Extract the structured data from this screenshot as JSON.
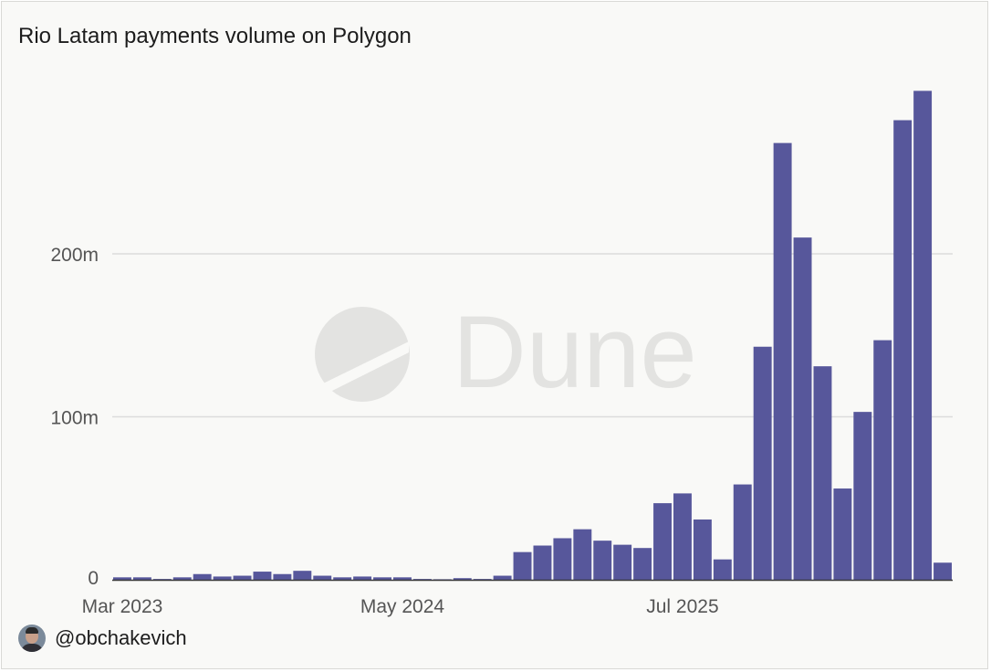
{
  "author": {
    "handle": "@obchakevich"
  },
  "watermark": {
    "text": "Dune"
  },
  "colors": {
    "bar": "#57579b",
    "grid": "#dcdcdc",
    "axis": "#3a3a3a",
    "tick_text": "#555555",
    "watermark": "#e3e3e1"
  },
  "chart_data": {
    "type": "bar",
    "title": "Rio Latam payments volume on Polygon",
    "xlabel": "",
    "ylabel": "",
    "x_tick_labels": [
      {
        "label": "Mar 2023",
        "category_index": 0
      },
      {
        "label": "May 2024",
        "category_index": 14
      },
      {
        "label": "Jul 2025",
        "category_index": 28
      }
    ],
    "y_ticks": [
      {
        "value": 0,
        "label": "0"
      },
      {
        "value": 100,
        "label": "100m"
      },
      {
        "value": 200,
        "label": "200m"
      }
    ],
    "ylim": [
      0,
      312
    ],
    "y_unit": "millions",
    "grid": true,
    "series": [
      {
        "values": [
          1.5,
          1.5,
          0.5,
          1.5,
          3.5,
          2,
          2.5,
          5,
          3.5,
          5.5,
          2.5,
          1.5,
          2,
          1.5,
          1.5,
          0.5,
          0.3,
          1,
          0.5,
          2.5,
          17,
          21,
          25.5,
          31,
          24,
          21.5,
          19.5,
          47,
          53,
          37,
          12.5,
          58.5,
          143,
          268,
          210,
          131,
          56,
          103,
          147,
          282,
          300,
          10.5
        ]
      }
    ]
  }
}
